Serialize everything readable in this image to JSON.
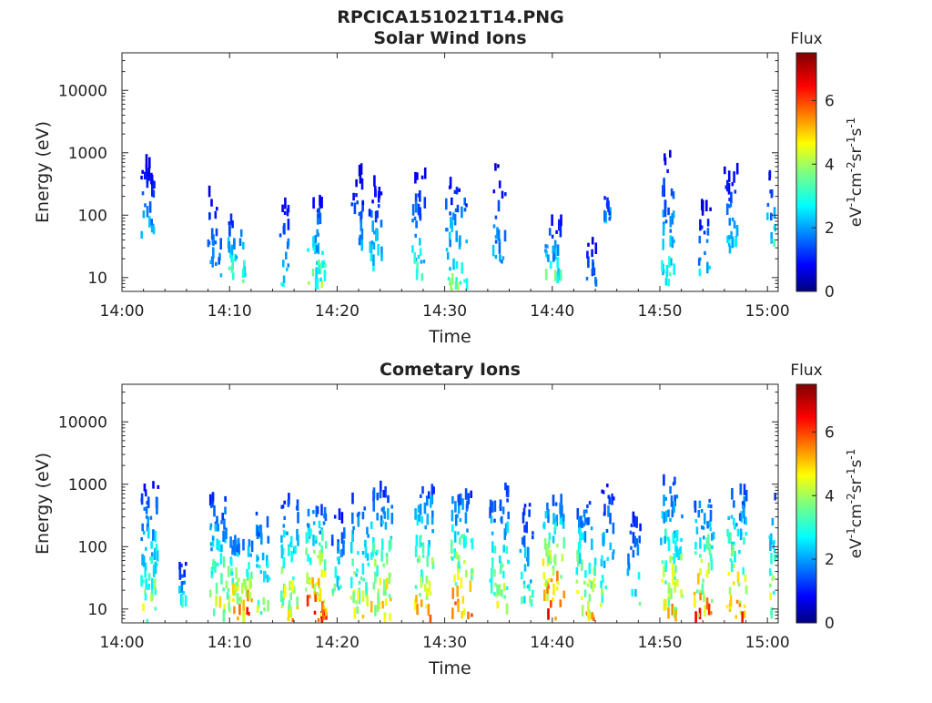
{
  "figure_title": "RPCICA151021T14.PNG",
  "colorbar": {
    "title": "Flux",
    "units_parts": [
      "eV",
      "-1",
      "cm",
      "-2",
      "sr",
      "-1",
      "s",
      "-1"
    ],
    "ticks": [
      "0",
      "2",
      "4",
      "6"
    ],
    "range": [
      0,
      7.5
    ],
    "colormap": "jet",
    "colors": [
      "#00007f",
      "#0000ff",
      "#007fff",
      "#00ffff",
      "#7fff7f",
      "#ffff00",
      "#ff7f00",
      "#ff0000",
      "#7f0000"
    ]
  },
  "chart_data": [
    {
      "type": "heatmap",
      "title": "Solar Wind Ions",
      "xlabel": "Time",
      "ylabel": "Energy (eV)",
      "xlim": [
        "14:00",
        "15:01"
      ],
      "x_ticks": [
        "14:00",
        "14:10",
        "14:20",
        "14:30",
        "14:40",
        "14:50",
        "15:00"
      ],
      "ylim": [
        6,
        40000
      ],
      "y_scale": "log",
      "y_ticks": [
        "10",
        "100",
        "1000",
        "10000"
      ],
      "z_label": "Flux",
      "bursts": [
        {
          "t": 2.3,
          "emin": 40,
          "emax": 700,
          "peak": 2.5,
          "w": 0.6,
          "n": 28
        },
        {
          "t": 8.5,
          "emin": 10,
          "emax": 300,
          "peak": 2.3,
          "w": 0.6,
          "n": 22
        },
        {
          "t": 10.5,
          "emin": 8,
          "emax": 90,
          "peak": 3.6,
          "w": 1.0,
          "n": 28
        },
        {
          "t": 15.0,
          "emin": 7,
          "emax": 200,
          "peak": 2.6,
          "w": 0.4,
          "n": 18
        },
        {
          "t": 18.0,
          "emin": 6,
          "emax": 150,
          "peak": 3.8,
          "w": 0.8,
          "n": 36
        },
        {
          "t": 21.8,
          "emin": 25,
          "emax": 500,
          "peak": 2.3,
          "w": 0.6,
          "n": 20
        },
        {
          "t": 23.5,
          "emin": 10,
          "emax": 300,
          "peak": 3.2,
          "w": 0.6,
          "n": 28
        },
        {
          "t": 27.5,
          "emin": 8,
          "emax": 400,
          "peak": 3.3,
          "w": 0.6,
          "n": 30
        },
        {
          "t": 31.0,
          "emin": 6,
          "emax": 300,
          "peak": 3.7,
          "w": 1.0,
          "n": 44
        },
        {
          "t": 35.0,
          "emin": 15,
          "emax": 600,
          "peak": 2.4,
          "w": 0.6,
          "n": 22
        },
        {
          "t": 40.0,
          "emin": 8,
          "emax": 80,
          "peak": 3.4,
          "w": 0.8,
          "n": 30
        },
        {
          "t": 43.5,
          "emin": 7,
          "emax": 40,
          "peak": 2.0,
          "w": 0.6,
          "n": 14
        },
        {
          "t": 45.0,
          "emin": 60,
          "emax": 220,
          "peak": 2.6,
          "w": 0.3,
          "n": 10
        },
        {
          "t": 50.7,
          "emin": 7,
          "emax": 900,
          "peak": 3.2,
          "w": 0.6,
          "n": 36
        },
        {
          "t": 54.0,
          "emin": 10,
          "emax": 120,
          "peak": 2.8,
          "w": 0.6,
          "n": 18
        },
        {
          "t": 56.5,
          "emin": 20,
          "emax": 500,
          "peak": 3.0,
          "w": 0.6,
          "n": 28
        },
        {
          "t": 60.3,
          "emin": 30,
          "emax": 500,
          "peak": 3.0,
          "w": 0.4,
          "n": 16
        }
      ]
    },
    {
      "type": "heatmap",
      "title": "Cometary Ions",
      "xlabel": "Time",
      "ylabel": "Energy (eV)",
      "xlim": [
        "14:00",
        "15:01"
      ],
      "x_ticks": [
        "14:00",
        "14:10",
        "14:20",
        "14:30",
        "14:40",
        "14:50",
        "15:00"
      ],
      "ylim": [
        6,
        40000
      ],
      "y_scale": "log",
      "y_ticks": [
        "10",
        "100",
        "1000",
        "10000"
      ],
      "z_label": "Flux",
      "bursts": [
        {
          "t": 2.5,
          "emin": 6,
          "emax": 900,
          "peak": 4.4,
          "w": 0.8,
          "n": 60
        },
        {
          "t": 5.5,
          "emin": 8,
          "emax": 60,
          "peak": 3.4,
          "w": 0.4,
          "n": 14
        },
        {
          "t": 9.0,
          "emin": 6,
          "emax": 600,
          "peak": 4.8,
          "w": 0.9,
          "n": 56
        },
        {
          "t": 11.0,
          "emin": 6,
          "emax": 120,
          "peak": 6.2,
          "w": 1.0,
          "n": 60
        },
        {
          "t": 13.0,
          "emin": 8,
          "emax": 400,
          "peak": 4.2,
          "w": 0.6,
          "n": 30
        },
        {
          "t": 15.5,
          "emin": 6,
          "emax": 500,
          "peak": 5.2,
          "w": 0.8,
          "n": 50
        },
        {
          "t": 18.0,
          "emin": 6,
          "emax": 400,
          "peak": 6.4,
          "w": 1.0,
          "n": 70
        },
        {
          "t": 20.0,
          "emin": 15,
          "emax": 300,
          "peak": 3.6,
          "w": 0.6,
          "n": 24
        },
        {
          "t": 22.0,
          "emin": 6,
          "emax": 500,
          "peak": 4.8,
          "w": 0.8,
          "n": 44
        },
        {
          "t": 24.0,
          "emin": 6,
          "emax": 800,
          "peak": 5.4,
          "w": 1.0,
          "n": 60
        },
        {
          "t": 28.0,
          "emin": 6,
          "emax": 900,
          "peak": 5.5,
          "w": 0.9,
          "n": 56
        },
        {
          "t": 31.5,
          "emin": 6,
          "emax": 600,
          "peak": 6.0,
          "w": 1.0,
          "n": 64
        },
        {
          "t": 35.0,
          "emin": 8,
          "emax": 900,
          "peak": 4.6,
          "w": 0.9,
          "n": 50
        },
        {
          "t": 37.5,
          "emin": 8,
          "emax": 500,
          "peak": 3.8,
          "w": 0.6,
          "n": 28
        },
        {
          "t": 40.0,
          "emin": 6,
          "emax": 500,
          "peak": 6.6,
          "w": 1.0,
          "n": 64
        },
        {
          "t": 43.0,
          "emin": 6,
          "emax": 500,
          "peak": 5.4,
          "w": 0.9,
          "n": 56
        },
        {
          "t": 45.0,
          "emin": 10,
          "emax": 900,
          "peak": 4.0,
          "w": 0.6,
          "n": 30
        },
        {
          "t": 47.5,
          "emin": 10,
          "emax": 300,
          "peak": 3.6,
          "w": 0.6,
          "n": 22
        },
        {
          "t": 51.0,
          "emin": 6,
          "emax": 1200,
          "peak": 5.3,
          "w": 1.0,
          "n": 64
        },
        {
          "t": 54.0,
          "emin": 6,
          "emax": 600,
          "peak": 5.8,
          "w": 0.9,
          "n": 56
        },
        {
          "t": 57.0,
          "emin": 6,
          "emax": 700,
          "peak": 5.7,
          "w": 1.0,
          "n": 60
        },
        {
          "t": 60.5,
          "emin": 6,
          "emax": 600,
          "peak": 4.8,
          "w": 0.4,
          "n": 26
        }
      ]
    }
  ]
}
